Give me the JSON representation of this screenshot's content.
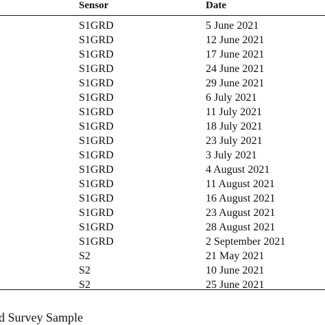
{
  "table": {
    "headers": {
      "sensor": "Sensor",
      "date": "Date"
    },
    "rows": [
      {
        "sensor": "S1GRD",
        "date": "5 June 2021"
      },
      {
        "sensor": "S1GRD",
        "date": "12 June 2021"
      },
      {
        "sensor": "S1GRD",
        "date": "17 June 2021"
      },
      {
        "sensor": "S1GRD",
        "date": "24 June 2021"
      },
      {
        "sensor": "S1GRD",
        "date": "29 June 2021"
      },
      {
        "sensor": "S1GRD",
        "date": "6 July 2021"
      },
      {
        "sensor": "S1GRD",
        "date": "11 July 2021"
      },
      {
        "sensor": "S1GRD",
        "date": "18 July 2021"
      },
      {
        "sensor": "S1GRD",
        "date": "23 July 2021"
      },
      {
        "sensor": "S1GRD",
        "date": "3 July 2021"
      },
      {
        "sensor": "S1GRD",
        "date": "4 August 2021"
      },
      {
        "sensor": "S1GRD",
        "date": "11 August 2021"
      },
      {
        "sensor": "S1GRD",
        "date": "16 August 2021"
      },
      {
        "sensor": "S1GRD",
        "date": "23 August 2021"
      },
      {
        "sensor": "S1GRD",
        "date": "28 August 2021"
      },
      {
        "sensor": "S1GRD",
        "date": "2 September 2021"
      },
      {
        "sensor": "S2",
        "date": "21 May 2021"
      },
      {
        "sensor": "S2",
        "date": "10 June 2021"
      },
      {
        "sensor": "S2",
        "date": "25 June 2021"
      }
    ]
  },
  "caption": "d Survey Sample"
}
